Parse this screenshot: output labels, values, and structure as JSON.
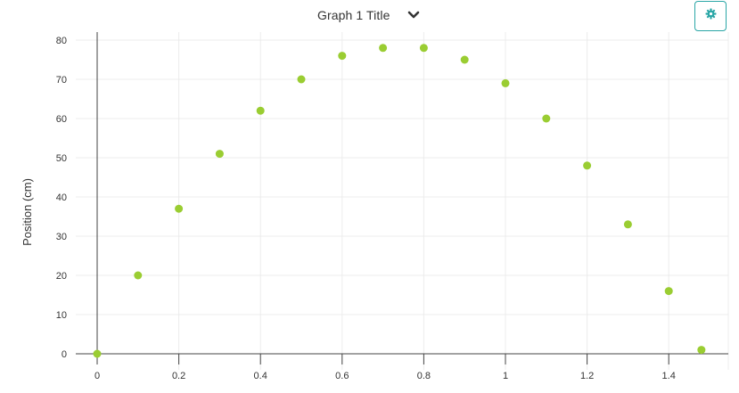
{
  "header": {
    "title": "Graph 1 Title",
    "chevron_icon": "chevron-down-icon",
    "settings_icon": "gear-icon",
    "accent_color": "#2aa6a6"
  },
  "chart_data": {
    "type": "scatter",
    "title": "Graph 1 Title",
    "xlabel": "",
    "ylabel": "Position (cm)",
    "xlim": [
      0,
      1.55
    ],
    "ylim": [
      -1,
      82
    ],
    "x_ticks": [
      0,
      0.2,
      0.4,
      0.6,
      0.8,
      1,
      1.2,
      1.4
    ],
    "x_tick_labels": [
      "0",
      "0.2",
      "0.4",
      "0.6",
      "0.8",
      "1",
      "1.2",
      "1.4"
    ],
    "y_ticks": [
      0,
      10,
      20,
      30,
      40,
      50,
      60,
      70,
      80
    ],
    "y_tick_labels": [
      "0",
      "10",
      "20",
      "30",
      "40",
      "50",
      "60",
      "70",
      "80"
    ],
    "grid": true,
    "point_color": "#9acd32",
    "series": [
      {
        "x": [
          0,
          0.1,
          0.2,
          0.3,
          0.4,
          0.5,
          0.6,
          0.7,
          0.8,
          0.9,
          1.0,
          1.1,
          1.2,
          1.3,
          1.4,
          1.48
        ],
        "y": [
          0,
          20,
          37,
          51,
          62,
          70,
          76,
          78,
          78,
          75,
          69,
          60,
          48,
          33,
          16,
          1
        ]
      }
    ]
  }
}
